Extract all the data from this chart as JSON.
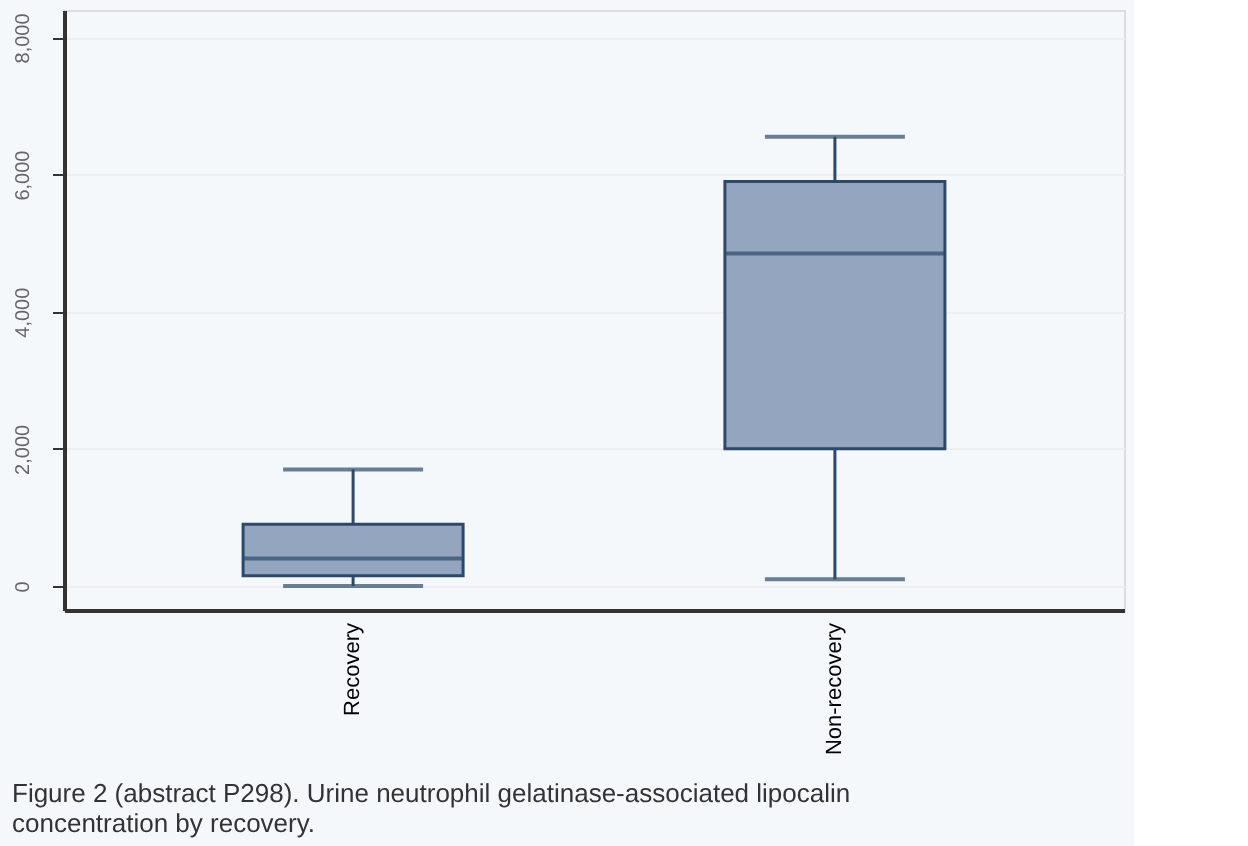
{
  "chart_data": {
    "type": "box",
    "categories": [
      "Recovery",
      "Non-recovery"
    ],
    "boxes": [
      {
        "low": 0,
        "q1": 150,
        "median": 400,
        "q3": 900,
        "high": 1700
      },
      {
        "low": 100,
        "q1": 2000,
        "median": 4850,
        "q3": 5900,
        "high": 6550
      }
    ],
    "color": "#94a6bf",
    "ylim": [
      -350,
      8400
    ],
    "yticks": [
      0,
      {
        "value": 2000,
        "label": "2,000"
      },
      {
        "value": 4000,
        "label": "4,000"
      },
      {
        "value": 6000,
        "label": "6,000"
      },
      {
        "value": 8000,
        "label": "8,000"
      }
    ],
    "grid": "y",
    "annotations": [
      "Figure 2 (abstract P298). Urine neutrophil gelatinase-associated lipocalin concentration by recovery."
    ]
  }
}
